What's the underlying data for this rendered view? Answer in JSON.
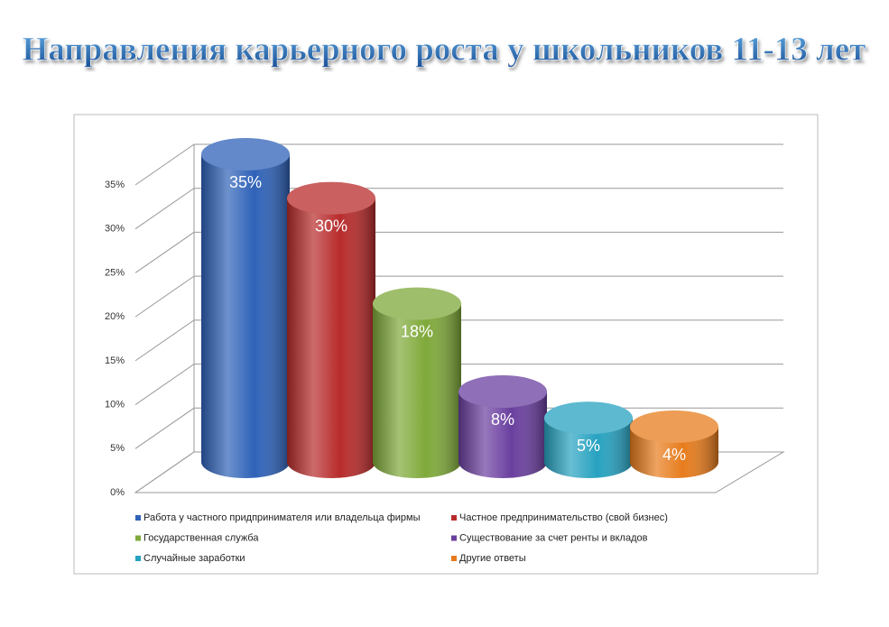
{
  "chart_data": {
    "type": "bar",
    "title": "Направления карьерного роста у школьников 11-13 лет",
    "series": [
      {
        "name": "Работа у частного придпринимателя или владельца фирмы",
        "color": "#2f62b8",
        "values": [
          35
        ],
        "value_labels": [
          "35%"
        ]
      },
      {
        "name": "Частное предпринимательство (свой бизнес)",
        "color": "#b82b2b",
        "values": [
          30
        ],
        "value_labels": [
          "30%"
        ]
      },
      {
        "name": "Государственная служба",
        "color": "#7fa93a",
        "values": [
          18
        ],
        "value_labels": [
          "18%"
        ]
      },
      {
        "name": "Существование за счет ренты и вкладов",
        "color": "#6a3f9f",
        "values": [
          8
        ],
        "value_labels": [
          "8%"
        ]
      },
      {
        "name": "Случайные заработки",
        "color": "#27a2c0",
        "values": [
          5
        ],
        "value_labels": [
          "5%"
        ]
      },
      {
        "name": "Другие ответы",
        "color": "#e77c1d",
        "values": [
          4
        ],
        "value_labels": [
          "4%"
        ]
      }
    ],
    "ylim": [
      0,
      35
    ],
    "yticks": [
      {
        "value": 0,
        "label": "0%"
      },
      {
        "value": 5,
        "label": "5%"
      },
      {
        "value": 10,
        "label": "10%"
      },
      {
        "value": 15,
        "label": "15%"
      },
      {
        "value": 20,
        "label": "20%"
      },
      {
        "value": 25,
        "label": "25%"
      },
      {
        "value": 30,
        "label": "30%"
      },
      {
        "value": 35,
        "label": "35%"
      }
    ],
    "grid": true
  }
}
